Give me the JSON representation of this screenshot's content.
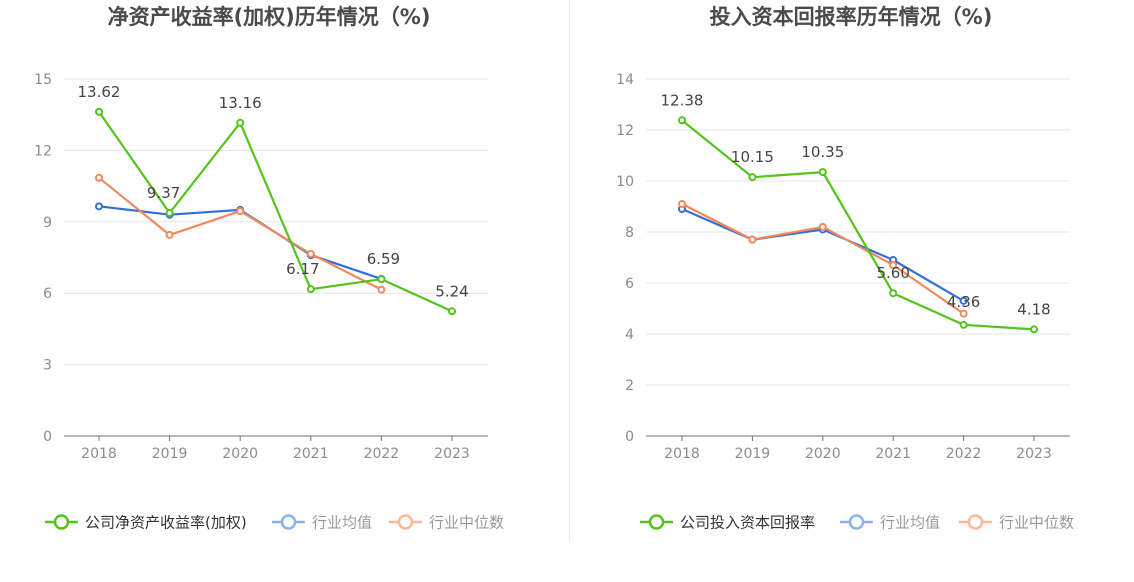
{
  "chart_data": [
    {
      "type": "line",
      "title": "净资产收益率(加权)历年情况（%)",
      "categories": [
        "2018",
        "2019",
        "2020",
        "2021",
        "2022",
        "2023"
      ],
      "ylim": [
        0,
        15
      ],
      "yticks": [
        0,
        3,
        6,
        9,
        12,
        15
      ],
      "grid": true,
      "legend_position": "bottom",
      "series": [
        {
          "name": "公司净资产收益率(加权)",
          "color": "#52c41a",
          "values": [
            13.62,
            9.37,
            13.16,
            6.17,
            6.59,
            5.24
          ],
          "labels": [
            "13.62",
            "9.37",
            "13.16",
            "6.17",
            "6.59",
            "5.24"
          ]
        },
        {
          "name": "行业均值",
          "color": "#3470d8",
          "values": [
            9.65,
            9.3,
            9.5,
            7.6,
            6.6,
            null
          ]
        },
        {
          "name": "行业中位数",
          "color": "#f08a5d",
          "values": [
            10.85,
            8.45,
            9.45,
            7.65,
            6.15,
            null
          ]
        }
      ]
    },
    {
      "type": "line",
      "title": "投入资本回报率历年情况（%)",
      "categories": [
        "2018",
        "2019",
        "2020",
        "2021",
        "2022",
        "2023"
      ],
      "ylim": [
        0,
        14
      ],
      "yticks": [
        0,
        2,
        4,
        6,
        8,
        10,
        12,
        14
      ],
      "grid": true,
      "legend_position": "bottom",
      "series": [
        {
          "name": "公司投入资本回报率",
          "color": "#52c41a",
          "values": [
            12.38,
            10.15,
            10.35,
            5.6,
            4.36,
            4.18
          ],
          "labels": [
            "12.38",
            "10.15",
            "10.35",
            "5.60",
            "4.36",
            "4.18"
          ]
        },
        {
          "name": "行业均值",
          "color": "#3470d8",
          "values": [
            8.9,
            7.7,
            8.1,
            6.9,
            5.3,
            null
          ]
        },
        {
          "name": "行业中位数",
          "color": "#f08a5d",
          "values": [
            9.1,
            7.7,
            8.2,
            6.7,
            4.8,
            null
          ]
        }
      ]
    }
  ]
}
